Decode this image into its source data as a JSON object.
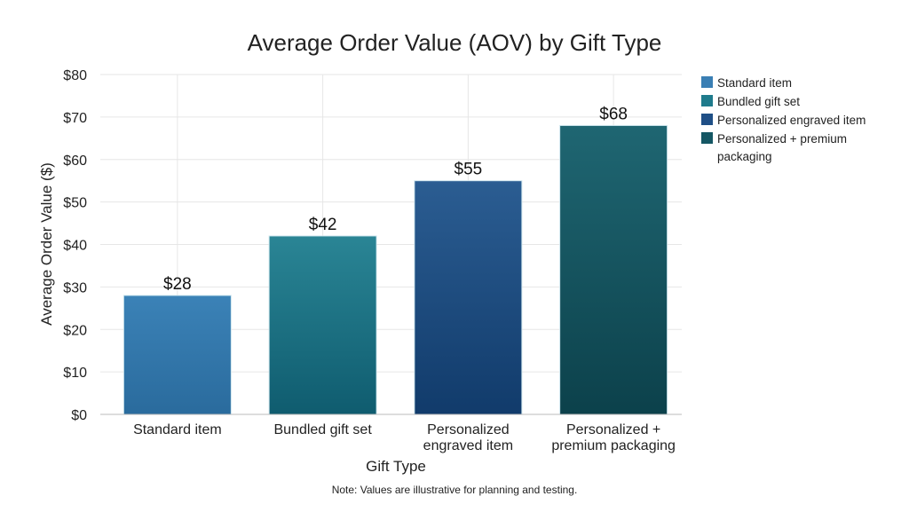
{
  "chart_data": {
    "type": "bar",
    "title": "Average Order Value (AOV) by Gift Type",
    "xlabel": "Gift Type",
    "ylabel": "Average Order Value ($)",
    "ylim": [
      0,
      80
    ],
    "yticks": [
      "$0",
      "$10",
      "$20",
      "$30",
      "$40",
      "$50",
      "$60",
      "$70",
      "$80"
    ],
    "grid": true,
    "legend_position": "right",
    "categories": [
      "Standard item",
      "Bundled gift set",
      "Personalized engraved item",
      "Personalized + premium packaging"
    ],
    "category_tick_lines": [
      [
        "Standard item"
      ],
      [
        "Bundled gift set"
      ],
      [
        "Personalized",
        "engraved item"
      ],
      [
        "Personalized +",
        "premium packaging"
      ]
    ],
    "values": [
      28,
      42,
      55,
      68
    ],
    "data_labels": [
      "$28",
      "$42",
      "$55",
      "$68"
    ],
    "legend": [
      {
        "label_lines": [
          "Standard item"
        ],
        "color": "#3a7fb4"
      },
      {
        "label_lines": [
          "Bundled gift set"
        ],
        "color": "#1f7b8c"
      },
      {
        "label_lines": [
          "Personalized engraved item"
        ],
        "color": "#1f4f86"
      },
      {
        "label_lines": [
          "Personalized + premium",
          "packaging"
        ],
        "color": "#155764"
      }
    ],
    "colors": [
      [
        "#3b82b7",
        "#2a6b9d"
      ],
      [
        "#2a8595",
        "#0f5c6f"
      ],
      [
        "#2b5d92",
        "#113b6b"
      ],
      [
        "#1f6672",
        "#0c414b"
      ]
    ],
    "note": "Note: Values are illustrative for planning and testing."
  }
}
